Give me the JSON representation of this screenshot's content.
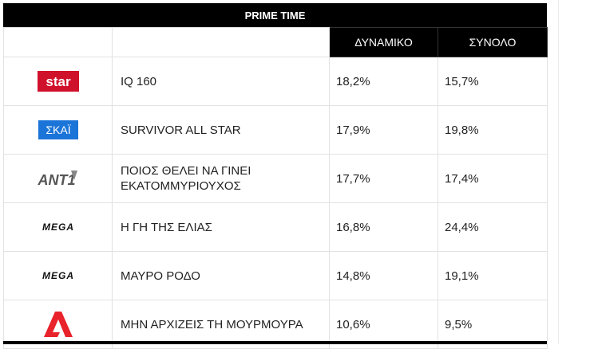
{
  "table": {
    "title": "PRIME TIME",
    "headers": {
      "col3": "ΔΥΝΑΜΙΚΟ",
      "col4": "ΣΥΝΟΛΟ"
    },
    "rows": [
      {
        "channel_logo": "star-logo",
        "logo_text": "star",
        "show": "IQ 160",
        "dynamiko": "18,2%",
        "synolo": "15,7%"
      },
      {
        "channel_logo": "skai-logo",
        "logo_text": "ΣΚΑΪ",
        "show": "SURVIVOR ALL STAR",
        "dynamiko": "17,9%",
        "synolo": "19,8%"
      },
      {
        "channel_logo": "ant1-logo",
        "logo_text": "ANT1",
        "show": "ΠΟΙΟΣ ΘΕΛΕΙ ΝΑ ΓΙΝΕΙ ΕΚΑΤΟΜΜΥΡΙΟΥΧΟΣ",
        "dynamiko": "17,7%",
        "synolo": "17,4%"
      },
      {
        "channel_logo": "mega-logo",
        "logo_text": "MEGA",
        "show": "Η ΓΗ ΤΗΣ ΕΛΙΑΣ",
        "dynamiko": "16,8%",
        "synolo": "24,4%"
      },
      {
        "channel_logo": "mega-logo",
        "logo_text": "MEGA",
        "show": "ΜΑΥΡΟ ΡΟΔΟ",
        "dynamiko": "14,8%",
        "synolo": "19,1%"
      },
      {
        "channel_logo": "alpha-logo",
        "logo_text": "Alpha",
        "show": "ΜΗΝ ΑΡΧΙΖΕΙΣ ΤΗ ΜΟΥΡΜΟΥΡΑ",
        "dynamiko": "10,6%",
        "synolo": "9,5%"
      }
    ]
  },
  "colors": {
    "star": "#d0112b",
    "skai": "#1b74d8",
    "alpha": "#e8232b",
    "header_bg": "#000000"
  }
}
